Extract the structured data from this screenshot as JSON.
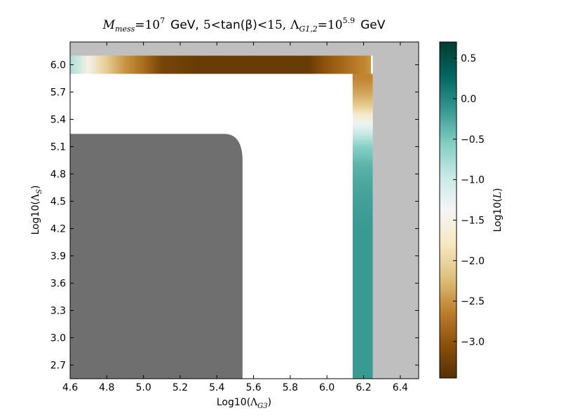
{
  "chart_data": {
    "type": "heatmap",
    "title": {
      "pre": "M",
      "pre_sub": "mess",
      "eq1": "=10",
      "exp1": "7",
      "gev1": "GeV,",
      "tan_lo": "5",
      "lt": "<",
      "tan_text": "tan(β)",
      "tan_hi": "15,",
      "lam": "Λ",
      "lam_sub": "G1,2",
      "eq2": "=10",
      "exp2": "5.9",
      "gev2": "GeV"
    },
    "xlabel": {
      "pre": "Log10(",
      "sym": "Λ",
      "sub": "G3",
      "post": ")"
    },
    "ylabel": {
      "pre": "Log10(",
      "sym": "Λ",
      "sub": "S",
      "post": ")"
    },
    "colorbar_label": {
      "pre": "Log10(",
      "sym": "L",
      "post": ")"
    },
    "xlim": [
      4.6,
      6.5
    ],
    "ylim": [
      2.55,
      6.25
    ],
    "xticks": [
      "4.6",
      "4.8",
      "5.0",
      "5.2",
      "5.4",
      "5.6",
      "5.8",
      "6.0",
      "6.2",
      "6.4"
    ],
    "yticks": [
      "2.7",
      "3.0",
      "3.3",
      "3.6",
      "3.9",
      "4.2",
      "4.5",
      "4.8",
      "5.1",
      "5.4",
      "5.7",
      "6.0"
    ],
    "colorbar_range": [
      -3.45,
      0.7
    ],
    "colorbar_ticks": [
      "0.5",
      "0.0",
      "−0.5",
      "−1.0",
      "−1.5",
      "−2.0",
      "−2.5",
      "−3.0"
    ],
    "colormap": "BrBG",
    "regions": [
      {
        "name": "excluded-gray-light",
        "color": "#bfbfbf",
        "x": [
          6.25,
          6.5
        ],
        "y": [
          2.55,
          6.25
        ]
      },
      {
        "name": "excluded-gray-light-top",
        "color": "#bfbfbf",
        "x": [
          4.6,
          6.5
        ],
        "y": [
          6.1,
          6.25
        ]
      },
      {
        "name": "excluded-gray-dark",
        "color": "#6f6f6f",
        "x": [
          4.6,
          5.54
        ],
        "y": [
          2.55,
          5.24
        ]
      }
    ],
    "top_band_profile": {
      "x": [
        4.6,
        4.7,
        4.8,
        4.9,
        5.0,
        5.1,
        5.3,
        5.5,
        5.7,
        5.9,
        6.0,
        6.1,
        6.2,
        6.24
      ],
      "log10_L": [
        -0.8,
        -1.5,
        -2.1,
        -2.5,
        -2.8,
        -3.2,
        -3.3,
        -3.3,
        -3.3,
        -3.3,
        -3.0,
        -2.8,
        -2.6,
        -2.5
      ]
    },
    "right_band_profile": {
      "y": [
        5.85,
        5.7,
        5.55,
        5.45,
        5.35,
        5.25,
        5.1,
        4.9,
        4.7,
        4.5,
        4.2,
        3.9,
        3.6,
        3.3,
        3.0,
        2.7,
        2.55
      ],
      "log10_L": [
        -2.6,
        -2.4,
        -2.1,
        -1.7,
        -1.3,
        -1.0,
        -0.6,
        -0.35,
        -0.25,
        -0.2,
        -0.15,
        -0.15,
        -0.15,
        -0.15,
        -0.15,
        -0.15,
        -0.15
      ]
    },
    "bands_geometry": {
      "top_band": {
        "x": [
          4.6,
          6.24
        ],
        "y_inner": 5.9,
        "y_outer": 6.1
      },
      "right_band": {
        "x_inner": 6.14,
        "x_outer": 6.25,
        "y": [
          2.55,
          5.9
        ]
      },
      "corner_radius_x": 0.25,
      "corner_radius_y": 0.45
    },
    "dark_region_corner_radius": {
      "x": 0.1,
      "y": 0.3
    }
  }
}
